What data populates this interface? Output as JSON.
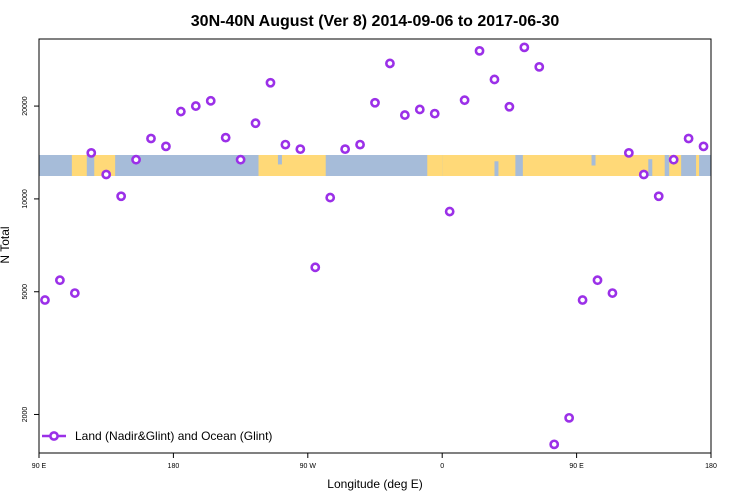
{
  "chart_data": {
    "type": "scatter",
    "title": "30N-40N August (Ver 8)   2014-09-06 to 2017-06-30",
    "xlabel": "Longitude (deg E)",
    "ylabel": "N Total",
    "x_scale": "longitude, wrapping from 90 E eastward to 180 E",
    "y_scale": "log",
    "xlim": [
      90,
      540
    ],
    "ylim": [
      1500,
      33000
    ],
    "x_ticks": [
      {
        "value": 90,
        "label": "90 E"
      },
      {
        "value": 180,
        "label": "180"
      },
      {
        "value": 270,
        "label": "90 W"
      },
      {
        "value": 360,
        "label": "0"
      },
      {
        "value": 450,
        "label": "90 E"
      },
      {
        "value": 540,
        "label": "180"
      }
    ],
    "y_ticks": [
      {
        "value": 2000,
        "label": "2000"
      },
      {
        "value": 5000,
        "label": "5000"
      },
      {
        "value": 10000,
        "label": "10000"
      },
      {
        "value": 20000,
        "label": "20000"
      }
    ],
    "grid": false,
    "legend_position": "bottom-left",
    "background_map": {
      "description": "world map strip at 30N-40N",
      "ocean_color": "#a6bcd9",
      "land_color": "#ffd978",
      "land_ranges": [
        [
          112,
          122
        ],
        [
          127,
          141
        ],
        [
          237,
          282
        ],
        [
          350,
          360
        ],
        [
          360,
          409
        ],
        [
          414,
          509
        ],
        [
          512,
          520
        ],
        [
          530,
          532
        ]
      ]
    },
    "series": [
      {
        "name": "Land (Nadir&Glint) and Ocean (Glint)",
        "color": "#9b30e8",
        "marker": "open-circle",
        "points": [
          {
            "x": 94,
            "y": 4700
          },
          {
            "x": 104,
            "y": 5450
          },
          {
            "x": 114,
            "y": 4950
          },
          {
            "x": 125,
            "y": 14100
          },
          {
            "x": 135,
            "y": 12000
          },
          {
            "x": 145,
            "y": 10200
          },
          {
            "x": 155,
            "y": 13400
          },
          {
            "x": 165,
            "y": 15700
          },
          {
            "x": 175,
            "y": 14800
          },
          {
            "x": 185,
            "y": 19200
          },
          {
            "x": 195,
            "y": 20000
          },
          {
            "x": 205,
            "y": 20800
          },
          {
            "x": 215,
            "y": 15800
          },
          {
            "x": 225,
            "y": 13400
          },
          {
            "x": 235,
            "y": 17600
          },
          {
            "x": 245,
            "y": 23800
          },
          {
            "x": 255,
            "y": 15000
          },
          {
            "x": 265,
            "y": 14500
          },
          {
            "x": 275,
            "y": 6000
          },
          {
            "x": 285,
            "y": 10100
          },
          {
            "x": 295,
            "y": 14500
          },
          {
            "x": 305,
            "y": 15000
          },
          {
            "x": 315,
            "y": 20500
          },
          {
            "x": 325,
            "y": 27500
          },
          {
            "x": 335,
            "y": 18700
          },
          {
            "x": 345,
            "y": 19500
          },
          {
            "x": 355,
            "y": 18900
          },
          {
            "x": 365,
            "y": 9100
          },
          {
            "x": 375,
            "y": 20900
          },
          {
            "x": 385,
            "y": 30200
          },
          {
            "x": 395,
            "y": 24400
          },
          {
            "x": 405,
            "y": 19900
          },
          {
            "x": 415,
            "y": 31000
          },
          {
            "x": 425,
            "y": 26800
          },
          {
            "x": 435,
            "y": 1600
          },
          {
            "x": 445,
            "y": 1950
          },
          {
            "x": 454,
            "y": 4700
          },
          {
            "x": 464,
            "y": 5450
          },
          {
            "x": 474,
            "y": 4950
          },
          {
            "x": 485,
            "y": 14100
          },
          {
            "x": 495,
            "y": 12000
          },
          {
            "x": 505,
            "y": 10200
          },
          {
            "x": 515,
            "y": 13400
          },
          {
            "x": 525,
            "y": 15700
          },
          {
            "x": 535,
            "y": 14800
          }
        ]
      }
    ]
  }
}
